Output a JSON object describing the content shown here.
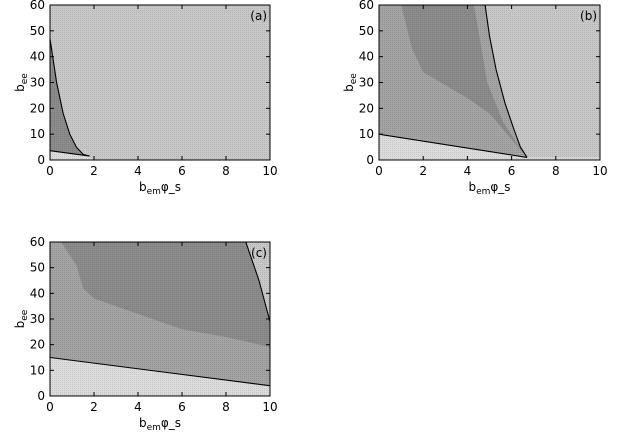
{
  "chart_data": [
    {
      "type": "area",
      "panel_label": "(a)",
      "xlabel": "b_em φ_s",
      "ylabel": "b_ee",
      "xlim": [
        0,
        10
      ],
      "ylim": [
        0,
        60
      ],
      "x_ticks": [
        "0",
        "2",
        "4",
        "6",
        "8",
        "10"
      ],
      "y_ticks": [
        "0",
        "10",
        "20",
        "30",
        "40",
        "50",
        "60"
      ],
      "regions": [
        {
          "fill": "#c8c8c8",
          "points": [
            [
              0,
              0
            ],
            [
              10,
              0
            ],
            [
              10,
              60
            ],
            [
              0,
              60
            ]
          ]
        },
        {
          "fill": "#dcdcdc",
          "points": [
            [
              0,
              0
            ],
            [
              2.0,
              0
            ],
            [
              1.8,
              1.5
            ],
            [
              0,
              3.6
            ]
          ]
        },
        {
          "fill": "#8c8c8c",
          "points": [
            [
              0,
              3.6
            ],
            [
              0,
              47
            ],
            [
              0.3,
              30
            ],
            [
              0.6,
              18
            ],
            [
              0.9,
              10
            ],
            [
              1.2,
              5
            ],
            [
              1.5,
              2.2
            ],
            [
              1.8,
              1.5
            ]
          ]
        }
      ],
      "lines": [
        {
          "points": [
            [
              0,
              3.6
            ],
            [
              1.8,
              1.5
            ]
          ]
        },
        {
          "points": [
            [
              0,
              47
            ],
            [
              0.3,
              30
            ],
            [
              0.6,
              18
            ],
            [
              0.9,
              10
            ],
            [
              1.2,
              5
            ],
            [
              1.5,
              2.2
            ],
            [
              1.8,
              1.5
            ]
          ]
        }
      ]
    },
    {
      "type": "area",
      "panel_label": "(b)",
      "xlabel": "b_em φ_s",
      "ylabel": "b_ee",
      "xlim": [
        0,
        10
      ],
      "ylim": [
        0,
        60
      ],
      "x_ticks": [
        "0",
        "2",
        "4",
        "6",
        "8",
        "10"
      ],
      "y_ticks": [
        "0",
        "10",
        "20",
        "30",
        "40",
        "50",
        "60"
      ],
      "regions": [
        {
          "fill": "#c8c8c8",
          "points": [
            [
              0,
              0
            ],
            [
              10,
              0
            ],
            [
              10,
              60
            ],
            [
              0,
              60
            ]
          ]
        },
        {
          "fill": "#dcdcdc",
          "points": [
            [
              0,
              0
            ],
            [
              10,
              0
            ],
            [
              10,
              1
            ],
            [
              6.7,
              1
            ],
            [
              0,
              10
            ]
          ]
        },
        {
          "fill": "#a4a4a4",
          "points": [
            [
              0,
              10
            ],
            [
              0,
              60
            ],
            [
              4.8,
              60
            ],
            [
              5.0,
              48
            ],
            [
              5.3,
              35
            ],
            [
              5.7,
              22
            ],
            [
              6.1,
              12
            ],
            [
              6.4,
              5
            ],
            [
              6.7,
              1
            ]
          ]
        },
        {
          "fill": "#8c8c8c",
          "points": [
            [
              1.0,
              60
            ],
            [
              4.3,
              60
            ],
            [
              4.9,
              30
            ],
            [
              5.6,
              15
            ],
            [
              6.2,
              7
            ],
            [
              6.6,
              2
            ],
            [
              5.0,
              18
            ],
            [
              4.0,
              24
            ],
            [
              3.0,
              29
            ],
            [
              2.0,
              34
            ],
            [
              1.5,
              43
            ]
          ]
        }
      ],
      "lines": [
        {
          "points": [
            [
              0,
              10
            ],
            [
              6.7,
              1
            ]
          ]
        },
        {
          "points": [
            [
              4.8,
              60
            ],
            [
              5.0,
              48
            ],
            [
              5.3,
              35
            ],
            [
              5.7,
              22
            ],
            [
              6.1,
              12
            ],
            [
              6.4,
              5
            ],
            [
              6.7,
              1
            ]
          ]
        }
      ]
    },
    {
      "type": "area",
      "panel_label": "(c)",
      "xlabel": "b_em φ_s",
      "ylabel": "b_ee",
      "xlim": [
        0,
        10
      ],
      "ylim": [
        0,
        60
      ],
      "x_ticks": [
        "0",
        "2",
        "4",
        "6",
        "8",
        "10"
      ],
      "y_ticks": [
        "0",
        "10",
        "20",
        "30",
        "40",
        "50",
        "60"
      ],
      "regions": [
        {
          "fill": "#dcdcdc",
          "points": [
            [
              0,
              0
            ],
            [
              10,
              0
            ],
            [
              10,
              4
            ],
            [
              0,
              15
            ]
          ]
        },
        {
          "fill": "#a4a4a4",
          "points": [
            [
              0,
              15
            ],
            [
              0,
              60
            ],
            [
              10,
              60
            ],
            [
              10,
              4
            ]
          ]
        },
        {
          "fill": "#8c8c8c",
          "points": [
            [
              0.5,
              60
            ],
            [
              8.9,
              60
            ],
            [
              9.5,
              45
            ],
            [
              10,
              29
            ],
            [
              10,
              19
            ],
            [
              9,
              21
            ],
            [
              8,
              23
            ],
            [
              7,
              24.5
            ],
            [
              6,
              26
            ],
            [
              5,
              29
            ],
            [
              4,
              32
            ],
            [
              3,
              35
            ],
            [
              2,
              38
            ],
            [
              1.5,
              42
            ],
            [
              1.2,
              51
            ]
          ]
        },
        {
          "fill": "#c8c8c8",
          "points": [
            [
              8.9,
              60
            ],
            [
              10,
              60
            ],
            [
              10,
              29
            ],
            [
              9.5,
              45
            ]
          ]
        }
      ],
      "lines": [
        {
          "points": [
            [
              0,
              15
            ],
            [
              10,
              4
            ]
          ]
        },
        {
          "points": [
            [
              8.9,
              60
            ],
            [
              9.5,
              45
            ],
            [
              10,
              29
            ]
          ]
        }
      ]
    }
  ]
}
